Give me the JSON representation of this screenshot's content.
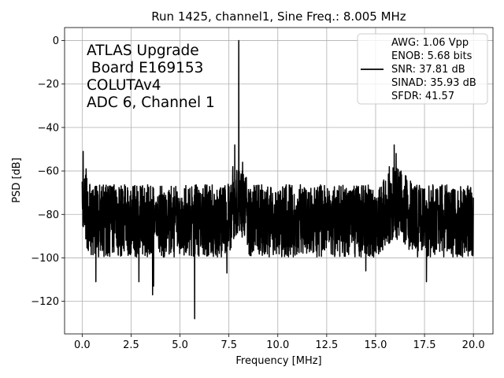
{
  "chart_data": {
    "type": "line",
    "title": "Run 1425, channel1, Sine Freq.: 8.005 MHz",
    "xlabel": "Frequency [MHz]",
    "ylabel": "PSD [dB]",
    "xlim": [
      -0.9,
      21.0
    ],
    "ylim": [
      -135,
      6
    ],
    "xticks": [
      0.0,
      2.5,
      5.0,
      7.5,
      10.0,
      12.5,
      15.0,
      17.5,
      20.0
    ],
    "xtick_labels": [
      "0.0",
      "2.5",
      "5.0",
      "7.5",
      "10.0",
      "12.5",
      "15.0",
      "17.5",
      "20.0"
    ],
    "yticks": [
      0,
      -20,
      -40,
      -60,
      -80,
      -100,
      -120
    ],
    "ytick_labels": [
      "0",
      "−20",
      "−40",
      "−60",
      "−80",
      "−100",
      "−120"
    ],
    "grid": true,
    "annotation": [
      "ATLAS Upgrade",
      " Board E169153",
      "COLUTAv4",
      "ADC 6, Channel 1"
    ],
    "legend": {
      "placement": "top-right",
      "entries": [
        "AWG: 1.06 Vpp",
        "ENOB: 5.68 bits",
        "SNR: 37.81 dB",
        "SINAD: 35.93 dB",
        "SFDR: 41.57"
      ]
    },
    "series": [
      {
        "name": "PSD",
        "color": "#000000",
        "noise_floor_db": -83,
        "noise_range_db": [
          -100,
          -63
        ],
        "peaks": [
          {
            "freq_mhz": 8.005,
            "psd_db": 0.0
          },
          {
            "freq_mhz": 0.05,
            "psd_db": -51.0
          },
          {
            "freq_mhz": 0.2,
            "psd_db": -59.0
          },
          {
            "freq_mhz": 7.8,
            "psd_db": -48.0
          },
          {
            "freq_mhz": 7.7,
            "psd_db": -58.0
          },
          {
            "freq_mhz": 8.2,
            "psd_db": -56.0
          },
          {
            "freq_mhz": 15.95,
            "psd_db": -48.0
          },
          {
            "freq_mhz": 16.05,
            "psd_db": -52.0
          },
          {
            "freq_mhz": 15.7,
            "psd_db": -58.0
          },
          {
            "freq_mhz": 16.3,
            "psd_db": -60.0
          }
        ],
        "dips": [
          {
            "freq_mhz": 5.75,
            "psd_db": -128.0
          },
          {
            "freq_mhz": 3.6,
            "psd_db": -117.0
          },
          {
            "freq_mhz": 0.7,
            "psd_db": -111.0
          },
          {
            "freq_mhz": 3.65,
            "psd_db": -113.0
          },
          {
            "freq_mhz": 2.9,
            "psd_db": -111.0
          },
          {
            "freq_mhz": 7.4,
            "psd_db": -107.0
          },
          {
            "freq_mhz": 17.6,
            "psd_db": -111.0
          },
          {
            "freq_mhz": 14.5,
            "psd_db": -106.0
          }
        ]
      }
    ]
  }
}
